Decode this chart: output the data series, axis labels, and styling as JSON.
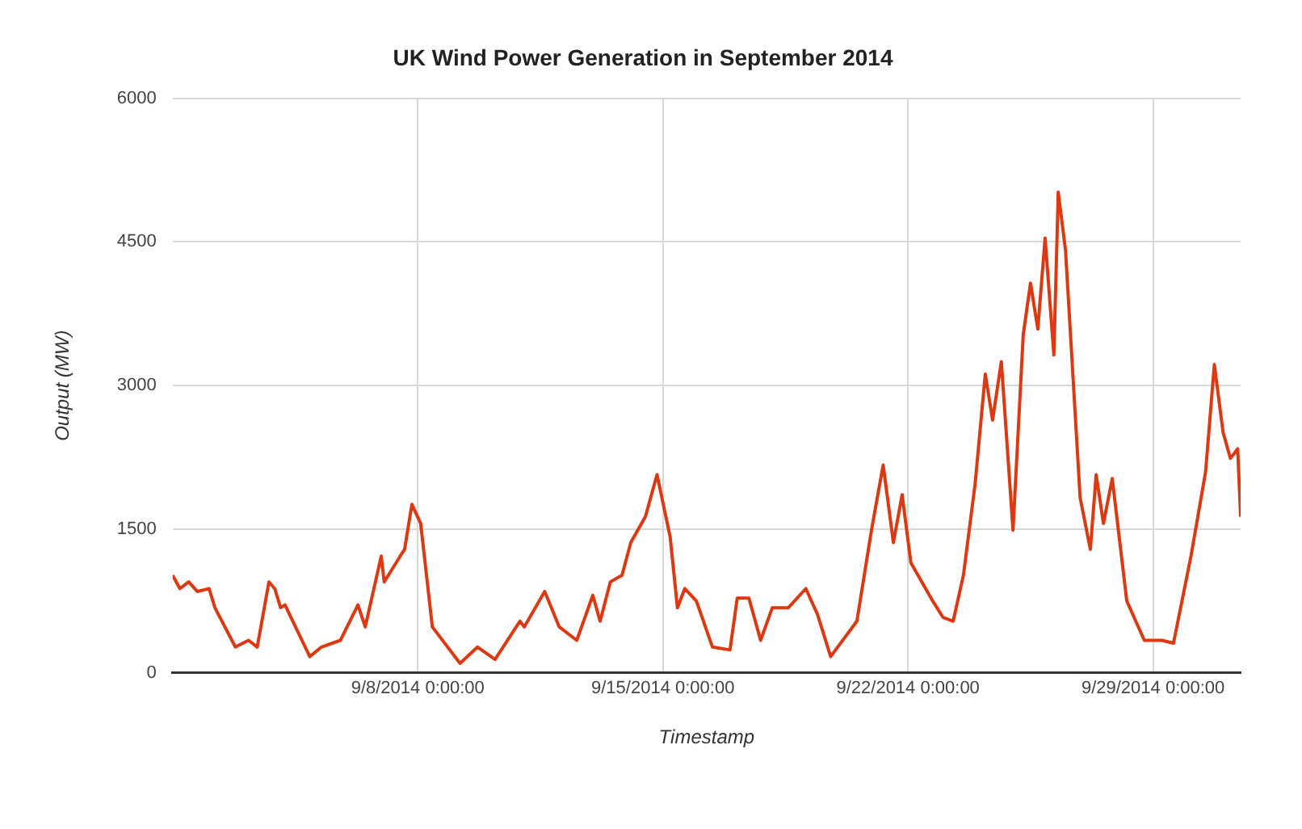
{
  "chart_data": {
    "type": "line",
    "title": "UK Wind Power Generation in September 2014",
    "xlabel": "Timestamp",
    "ylabel": "Output (MW)",
    "x": [
      "2014-09-01T00:00",
      "2014-09-01T05:00",
      "2014-09-01T11:00",
      "2014-09-01T17:00",
      "2014-09-02T01:00",
      "2014-09-02T05:00",
      "2014-09-02T19:00",
      "2014-09-03T04:00",
      "2014-09-03T10:00",
      "2014-09-03T18:00",
      "2014-09-03T22:00",
      "2014-09-04T02:00",
      "2014-09-04T05:00",
      "2014-09-04T22:00",
      "2014-09-05T06:00",
      "2014-09-05T19:00",
      "2014-09-06T07:00",
      "2014-09-06T12:00",
      "2014-09-06T23:00",
      "2014-09-07T01:00",
      "2014-09-07T12:00",
      "2014-09-07T15:00",
      "2014-09-07T20:00",
      "2014-09-08T02:00",
      "2014-09-08T10:00",
      "2014-09-09T05:00",
      "2014-09-09T17:00",
      "2014-09-10T05:00",
      "2014-09-10T22:00",
      "2014-09-11T01:00",
      "2014-09-11T15:00",
      "2014-09-12T01:00",
      "2014-09-12T13:00",
      "2014-09-13T00:00",
      "2014-09-13T05:00",
      "2014-09-13T12:00",
      "2014-09-13T20:00",
      "2014-09-14T02:00",
      "2014-09-14T12:00",
      "2014-09-14T20:00",
      "2014-09-15T05:00",
      "2014-09-15T10:00",
      "2014-09-15T15:00",
      "2014-09-15T23:00",
      "2014-09-16T10:00",
      "2014-09-16T22:00",
      "2014-09-17T03:00",
      "2014-09-17T11:00",
      "2014-09-17T19:00",
      "2014-09-18T03:00",
      "2014-09-18T14:00",
      "2014-09-19T02:00",
      "2014-09-19T10:00",
      "2014-09-19T19:00",
      "2014-09-20T13:00",
      "2014-09-20T23:00",
      "2014-09-21T07:00",
      "2014-09-21T14:00",
      "2014-09-21T20:00",
      "2014-09-22T02:00",
      "2014-09-22T17:00",
      "2014-09-23T00:00",
      "2014-09-23T07:00",
      "2014-09-23T14:00",
      "2014-09-23T22:00",
      "2014-09-24T05:00",
      "2014-09-24T10:00",
      "2014-09-24T16:00",
      "2014-09-25T00:00",
      "2014-09-25T07:00",
      "2014-09-25T12:00",
      "2014-09-25T17:00",
      "2014-09-25T22:00",
      "2014-09-26T04:00",
      "2014-09-26T07:00",
      "2014-09-26T12:00",
      "2014-09-26T22:00",
      "2014-09-27T05:00",
      "2014-09-27T09:00",
      "2014-09-27T14:00",
      "2014-09-27T20:00",
      "2014-09-28T06:00",
      "2014-09-28T18:00",
      "2014-09-29T06:00",
      "2014-09-29T14:00",
      "2014-09-30T02:00",
      "2014-09-30T12:00",
      "2014-09-30T18:00",
      "2014-10-01T00:00",
      "2014-10-01T05:00",
      "2014-10-01T10:00",
      "2014-10-01T12:00"
    ],
    "series": [
      {
        "color": "#dc3912",
        "values": [
          1020,
          880,
          950,
          850,
          880,
          680,
          270,
          340,
          270,
          950,
          880,
          680,
          710,
          170,
          270,
          340,
          710,
          480,
          1220,
          950,
          1220,
          1290,
          1760,
          1560,
          480,
          100,
          270,
          140,
          540,
          480,
          850,
          480,
          340,
          810,
          540,
          950,
          1020,
          1360,
          1630,
          2070,
          1420,
          680,
          880,
          750,
          270,
          240,
          780,
          780,
          340,
          680,
          680,
          880,
          610,
          170,
          540,
          1490,
          2170,
          1360,
          1860,
          1150,
          750,
          580,
          540,
          1020,
          1970,
          3120,
          2640,
          3250,
          1490,
          3530,
          4070,
          3590,
          4540,
          3320,
          5020,
          4410,
          1830,
          1290,
          2070,
          1560,
          2030,
          750,
          340,
          340,
          310,
          1220,
          2100,
          3220,
          2510,
          2240,
          2340,
          1630
        ]
      }
    ],
    "xlim": [
      "2014-09-01T00:00",
      "2014-10-01T12:00"
    ],
    "xticks": [
      {
        "value": "2014-09-08T00:00",
        "label": "9/8/2014 0:00:00"
      },
      {
        "value": "2014-09-15T00:00",
        "label": "9/15/2014 0:00:00"
      },
      {
        "value": "2014-09-22T00:00",
        "label": "9/22/2014 0:00:00"
      },
      {
        "value": "2014-09-29T00:00",
        "label": "9/29/2014 0:00:00"
      }
    ],
    "ylim": [
      0,
      6000
    ],
    "yticks": [
      0,
      1500,
      3000,
      4500,
      6000
    ],
    "grid": true,
    "legend": false,
    "marker": "none",
    "line_style": "solid"
  }
}
